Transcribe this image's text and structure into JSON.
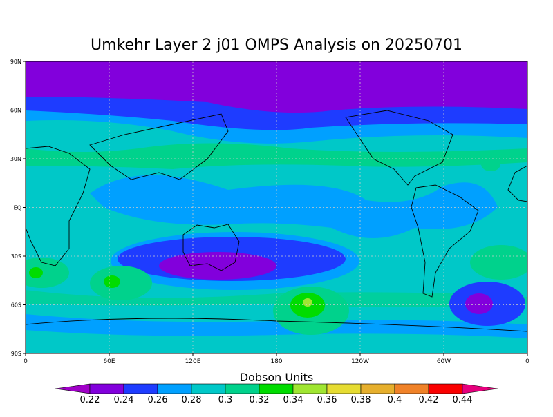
{
  "title": "Umkehr Layer 2 j01 OMPS Analysis on 20250701",
  "map": {
    "lat_labels": [
      "90N",
      "60N",
      "30N",
      "EQ",
      "30S",
      "60S",
      "90S"
    ],
    "lon_labels": [
      "0",
      "60E",
      "120E",
      "180",
      "120W",
      "60W",
      "0"
    ]
  },
  "colorbar": {
    "title": "Dobson Units",
    "levels": [
      0.22,
      0.24,
      0.26,
      0.28,
      0.3,
      0.32,
      0.34,
      0.36,
      0.38,
      0.4,
      0.42,
      0.44
    ],
    "colors": [
      "#a000c8",
      "#8200dc",
      "#1e3cff",
      "#00a0ff",
      "#00c8c8",
      "#00d28c",
      "#00dc00",
      "#a0e632",
      "#e6dc32",
      "#e6af2d",
      "#f08228",
      "#fa0000",
      "#e6007d"
    ]
  }
}
